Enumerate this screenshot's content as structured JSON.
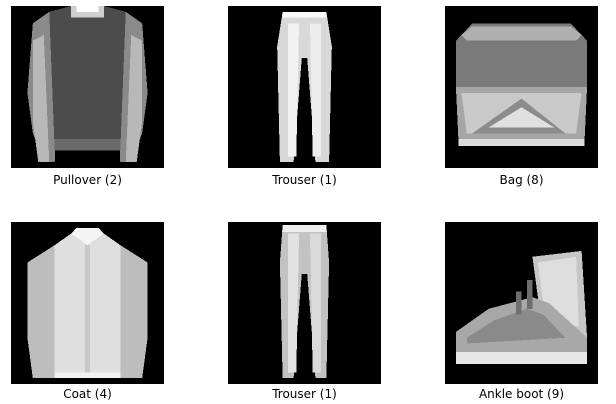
{
  "grid": {
    "items": [
      {
        "label": "Pullover (2)"
      },
      {
        "label": "Trouser (1)"
      },
      {
        "label": "Bag (8)"
      },
      {
        "label": "Coat (4)"
      },
      {
        "label": "Trouser (1)"
      },
      {
        "label": "Ankle boot (9)"
      }
    ]
  }
}
